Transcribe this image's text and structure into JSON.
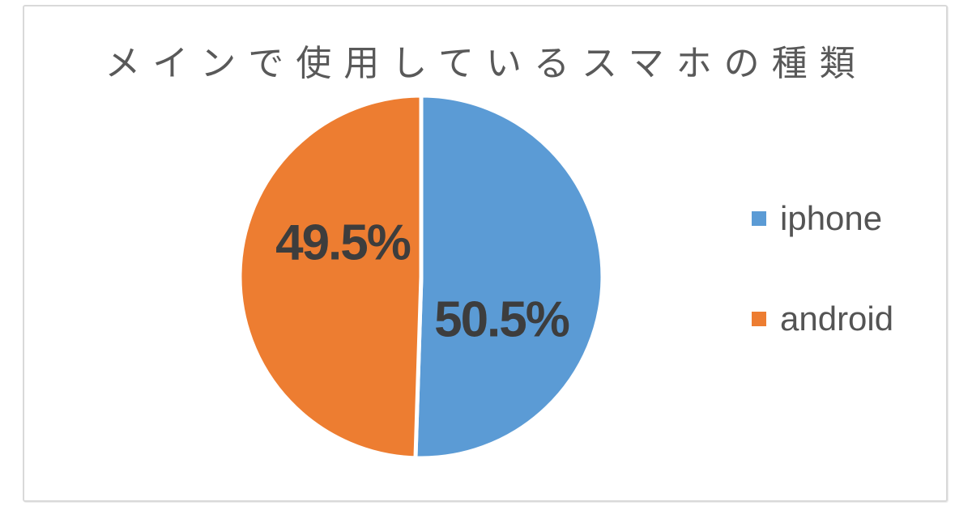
{
  "chart": {
    "title": "メインで使用しているスマホの種類"
  },
  "chart_data": {
    "type": "pie",
    "title": "メインで使用しているスマホの種類",
    "categories": [
      "iphone",
      "android"
    ],
    "values": [
      50.5,
      49.5
    ],
    "labels": [
      "50.5%",
      "49.5%"
    ],
    "colors": [
      "#5B9BD5",
      "#ED7D31"
    ],
    "label_color": "#3d3d3d",
    "title_color": "#595959",
    "legend_position": "right",
    "start_angle": "top",
    "direction": "clockwise",
    "slice_border_color": "#ffffff"
  }
}
